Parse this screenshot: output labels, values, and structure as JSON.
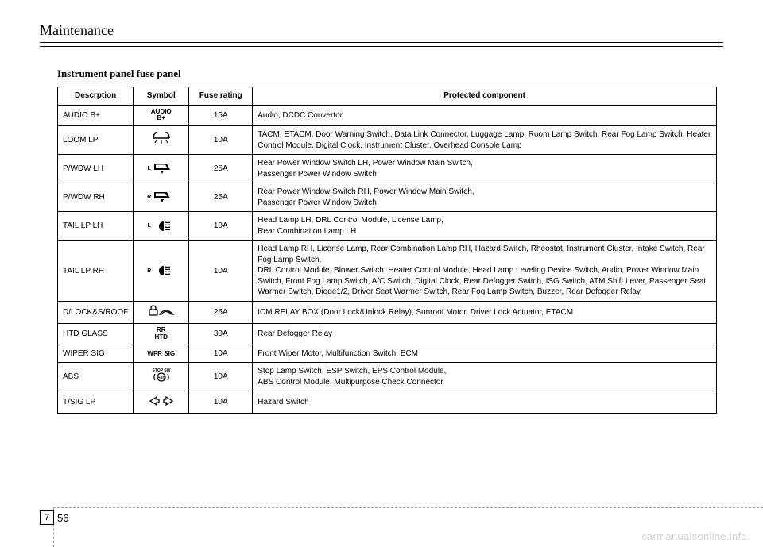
{
  "header": {
    "section": "Maintenance"
  },
  "subtitle": "Instrument panel fuse panel",
  "columns": {
    "desc": "Descrption",
    "symbol": "Symbol",
    "rating": "Fuse rating",
    "component": "Protected component"
  },
  "rows": [
    {
      "desc": "AUDIO B+",
      "symbol_text": "AUDIO\nB+",
      "rating": "15A",
      "component": "Audio, DCDC Convertor"
    },
    {
      "desc": "LOOM LP",
      "symbol_svg": "interior-lamp",
      "rating": "10A",
      "component": "TACM, ETACM, Door Warning Switch, Data Link Connector, Luggage Lamp, Room Lamp Switch, Rear Fog Lamp Switch, Heater Control Module, Digital Clock, Instrument Cluster, Overhead Console Lamp"
    },
    {
      "desc": "P/WDW LH",
      "symbol_sup": "L",
      "symbol_svg": "window",
      "rating": "25A",
      "component": "Rear Power Window Switch LH, Power Window Main Switch,\nPassenger Power Window Switch"
    },
    {
      "desc": "P/WDW RH",
      "symbol_sup": "R",
      "symbol_svg": "window",
      "rating": "25A",
      "component": "Rear Power Window Switch RH, Power Window Main Switch,\nPassenger Power Window Switch"
    },
    {
      "desc": "TAIL LP LH",
      "symbol_sup": "L",
      "symbol_svg": "headlamp",
      "rating": "10A",
      "component": "Head Lamp LH, DRL Control Module, License Lamp,\nRear Combination Lamp LH"
    },
    {
      "desc": "TAIL LP RH",
      "symbol_sup": "R",
      "symbol_svg": "headlamp",
      "rating": "10A",
      "component": "Head Lamp RH, License Lamp, Rear Combination Lamp RH, Hazard Switch, Rheostat, Instrument Cluster, Intake Switch, Rear Fog Lamp Switch,\nDRL Control Module, Blower Switch, Heater Control Module, Head Lamp Leveling Device Switch, Audio, Power Window Main Switch, Front Fog Lamp Switch, A/C Switch, Digital Clock, Rear Defogger Switch, ISG Switch, ATM Shift Lever, Passenger Seat Warmer Switch, Diode1/2, Driver Seat Warmer Switch, Rear Fog Lamp Switch, Buzzer, Rear Defogger Relay"
    },
    {
      "desc": "D/LOCK&S/ROOF",
      "symbol_svg": "lock-roof",
      "rating": "25A",
      "component": "ICM RELAY BOX (Door Lock/Unlock Relay), Sunroof Motor, Driver Lock Actuator, ETACM"
    },
    {
      "desc": "HTD GLASS",
      "symbol_text": "RR\nHTD",
      "rating": "30A",
      "component": "Rear Defogger Relay"
    },
    {
      "desc": "WIPER SIG",
      "symbol_text": "WPR SIG",
      "rating": "10A",
      "component": "Front Wiper Motor, Multifunction Switch, ECM"
    },
    {
      "desc": "ABS",
      "symbol_svg": "abs",
      "rating": "10A",
      "component": "Stop Lamp Switch, ESP Switch, EPS Control Module,\nABS Control Module, Multipurpose Check Connector"
    },
    {
      "desc": "T/SIG LP",
      "symbol_svg": "turn-signal",
      "rating": "10A",
      "component": "Hazard Switch"
    }
  ],
  "footer": {
    "chapter": "7",
    "page": "56"
  },
  "watermark": "carmanualsonline.info",
  "colors": {
    "text": "#000000",
    "bg": "#ffffff",
    "watermark": "#d0d0d0",
    "dashed": "#999999"
  }
}
